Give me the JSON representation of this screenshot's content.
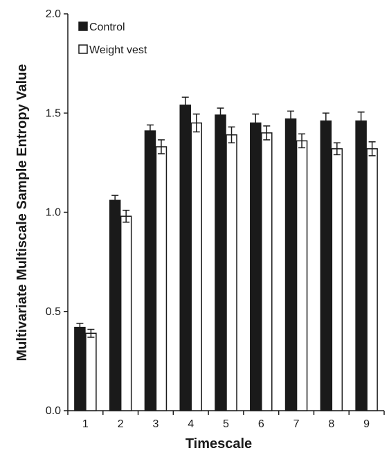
{
  "chart_data": {
    "type": "bar",
    "title": "",
    "xlabel": "Timescale",
    "ylabel": "Multivariate Multiscale Sample Entropy Value",
    "categories": [
      "1",
      "2",
      "3",
      "4",
      "5",
      "6",
      "7",
      "8",
      "9"
    ],
    "ylim": [
      0,
      2.0
    ],
    "yticks": [
      "0.0",
      "0.5",
      "1.0",
      "1.5",
      "2.0"
    ],
    "grid": false,
    "legend_position": "top-left",
    "series": [
      {
        "name": "Control",
        "color": "#1a1a1a",
        "fill": "solid",
        "values": [
          0.42,
          1.06,
          1.41,
          1.54,
          1.49,
          1.45,
          1.47,
          1.46,
          1.46
        ],
        "errors": [
          0.02,
          0.025,
          0.03,
          0.04,
          0.035,
          0.045,
          0.04,
          0.04,
          0.045
        ]
      },
      {
        "name": "Weight vest",
        "color": "#ffffff",
        "fill": "hollow",
        "values": [
          0.39,
          0.98,
          1.33,
          1.45,
          1.39,
          1.4,
          1.36,
          1.32,
          1.32
        ],
        "errors": [
          0.02,
          0.03,
          0.035,
          0.045,
          0.04,
          0.035,
          0.035,
          0.03,
          0.035
        ]
      }
    ]
  }
}
